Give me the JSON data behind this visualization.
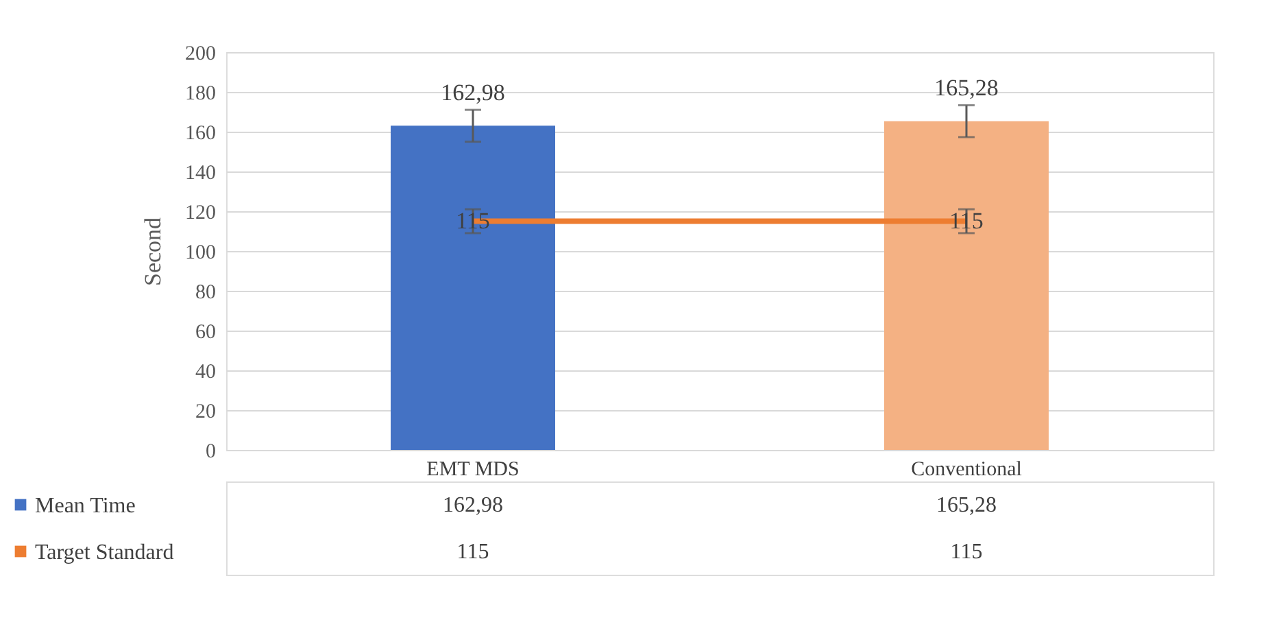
{
  "chart_data": {
    "type": "bar",
    "ylabel": "Second",
    "categories": [
      "EMT MDS",
      "Conventional"
    ],
    "series": [
      {
        "name": "Mean Time",
        "colors": [
          "#4472c4",
          "#f4b183"
        ],
        "values": [
          162.98,
          165.28
        ],
        "errors": [
          8,
          8
        ],
        "value_labels": [
          "162,98",
          "165,28"
        ]
      },
      {
        "name": "Target Standard",
        "type": "line",
        "color": "#ed7d31",
        "values": [
          115,
          115
        ],
        "errors": [
          6,
          6
        ],
        "value_labels": [
          "115",
          "115"
        ]
      }
    ],
    "ylim": [
      0,
      200
    ],
    "yticks": [
      0,
      20,
      40,
      60,
      80,
      100,
      120,
      140,
      160,
      180,
      200
    ],
    "grid": "y",
    "legend": "bottom"
  }
}
